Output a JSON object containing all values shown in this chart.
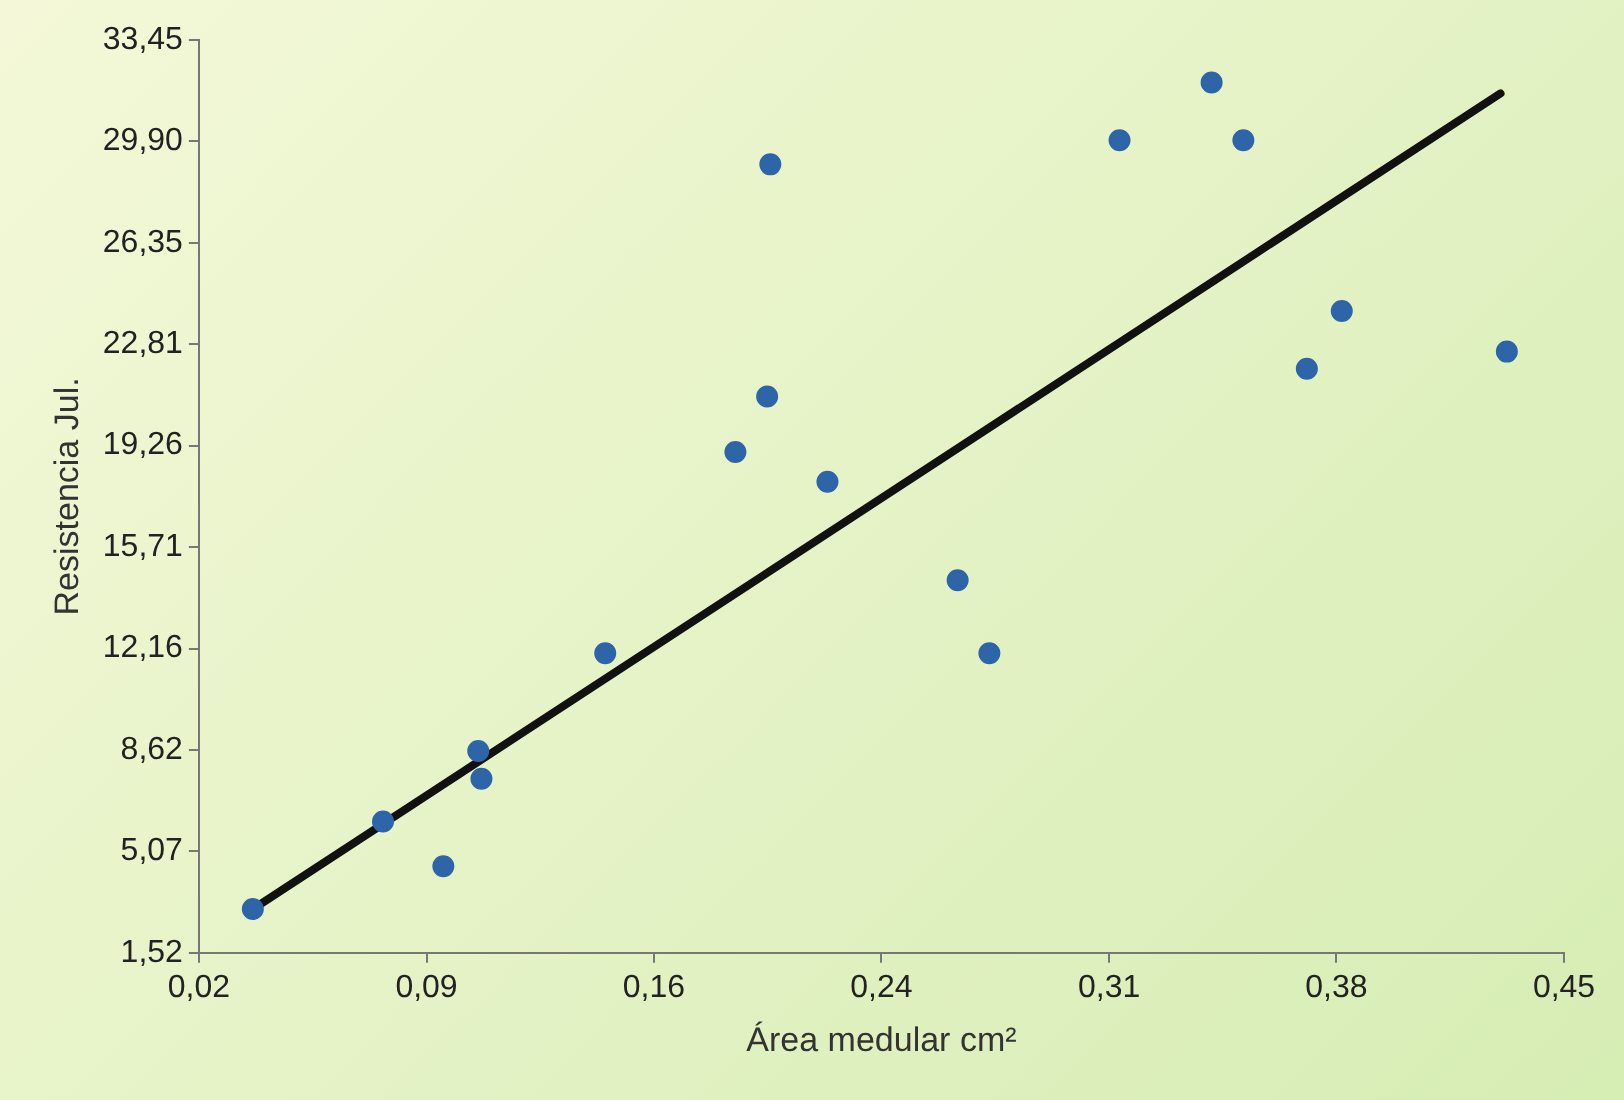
{
  "chart_data": {
    "type": "scatter",
    "xlabel": "Área medular cm²",
    "ylabel": "Resistencia Jul.",
    "xlim": [
      0.02,
      0.45
    ],
    "ylim": [
      1.52,
      33.45
    ],
    "xticks": [
      {
        "value": 0.02,
        "label": "0,02"
      },
      {
        "value": 0.0917,
        "label": "0,09"
      },
      {
        "value": 0.1633,
        "label": "0,16"
      },
      {
        "value": 0.235,
        "label": "0,24"
      },
      {
        "value": 0.3067,
        "label": "0,31"
      },
      {
        "value": 0.3783,
        "label": "0,38"
      },
      {
        "value": 0.45,
        "label": "0,45"
      }
    ],
    "yticks": [
      {
        "value": 1.52,
        "label": "1,52"
      },
      {
        "value": 5.07,
        "label": "5,07"
      },
      {
        "value": 8.62,
        "label": "8,62"
      },
      {
        "value": 12.16,
        "label": "12,16"
      },
      {
        "value": 15.71,
        "label": "15,71"
      },
      {
        "value": 19.26,
        "label": "19,26"
      },
      {
        "value": 22.81,
        "label": "22,81"
      },
      {
        "value": 26.35,
        "label": "26,35"
      },
      {
        "value": 29.9,
        "label": "29,90"
      },
      {
        "value": 33.45,
        "label": "33,45"
      }
    ],
    "grid": false,
    "legend": false,
    "series": [
      {
        "type": "scatter",
        "marker": "circle",
        "color": "#2e64a8",
        "x": [
          0.037,
          0.078,
          0.097,
          0.108,
          0.109,
          0.148,
          0.218,
          0.189,
          0.199,
          0.2,
          0.259,
          0.269,
          0.31,
          0.339,
          0.349,
          0.369,
          0.38,
          0.432
        ],
        "values": [
          3.05,
          6.11,
          4.55,
          8.58,
          7.61,
          12.0,
          18.0,
          19.04,
          20.98,
          29.1,
          14.55,
          12.0,
          29.94,
          31.96,
          29.94,
          21.95,
          23.97,
          22.55
        ]
      },
      {
        "type": "line",
        "marker": "none",
        "color": "#111111",
        "x": [
          0.037,
          0.43
        ],
        "values": [
          3.05,
          31.58
        ]
      }
    ]
  }
}
